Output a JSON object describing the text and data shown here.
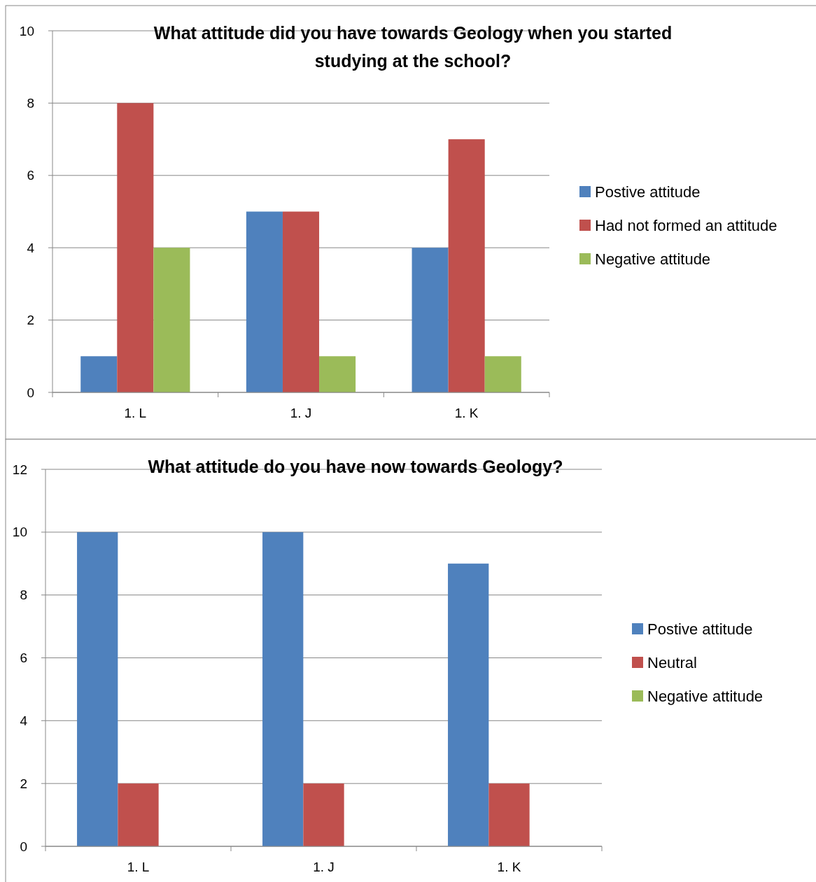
{
  "chart_data": [
    {
      "type": "bar",
      "title": "What attitude did you have towards Geology when you started studying at the school?",
      "categories": [
        "1. L",
        "1. J",
        "1. K"
      ],
      "series": [
        {
          "name": "Postive attitude",
          "color": "#4f81bd",
          "values": [
            1,
            5,
            4
          ]
        },
        {
          "name": "Had not formed an attitude",
          "color": "#c0504d",
          "values": [
            8,
            5,
            7
          ]
        },
        {
          "name": "Negative attitude",
          "color": "#9bbb59",
          "values": [
            4,
            1,
            1
          ]
        }
      ],
      "ylim": [
        0,
        10
      ],
      "yticks": [
        0,
        2,
        4,
        6,
        8,
        10
      ],
      "grid": "y",
      "legend": "right"
    },
    {
      "type": "bar",
      "title": "What attitude do you have now towards Geology?",
      "categories": [
        "1. L",
        "1. J",
        "1. K"
      ],
      "series": [
        {
          "name": "Postive attitude",
          "color": "#4f81bd",
          "values": [
            10,
            10,
            9
          ]
        },
        {
          "name": "Neutral",
          "color": "#c0504d",
          "values": [
            2,
            2,
            2
          ]
        },
        {
          "name": "Negative attitude",
          "color": "#9bbb59",
          "values": [
            0,
            0,
            0
          ]
        }
      ],
      "ylim": [
        0,
        12
      ],
      "yticks": [
        0,
        2,
        4,
        6,
        8,
        10,
        12
      ],
      "grid": "y",
      "legend": "right"
    }
  ]
}
